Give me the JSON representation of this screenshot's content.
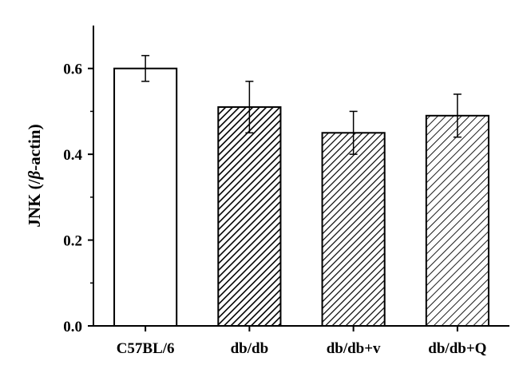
{
  "chart_data": {
    "type": "bar",
    "ylabel": {
      "prefix": "JNK (/",
      "symbol": "β",
      "suffix": "-actin)"
    },
    "xlabel": "",
    "categories": [
      "C57BL/6",
      "db/db",
      "db/db+v",
      "db/db+Q"
    ],
    "values": [
      0.6,
      0.51,
      0.45,
      0.49
    ],
    "errors": [
      0.03,
      0.06,
      0.05,
      0.05
    ],
    "fills": [
      "white",
      "dense-hatch",
      "hatch",
      "sparse-hatch"
    ],
    "ylim": [
      0,
      0.7
    ],
    "yticks": [
      0.0,
      0.2,
      0.4,
      0.6
    ],
    "ytick_labels": [
      "0.0",
      "0.2",
      "0.4",
      "0.6"
    ],
    "grid": false
  }
}
